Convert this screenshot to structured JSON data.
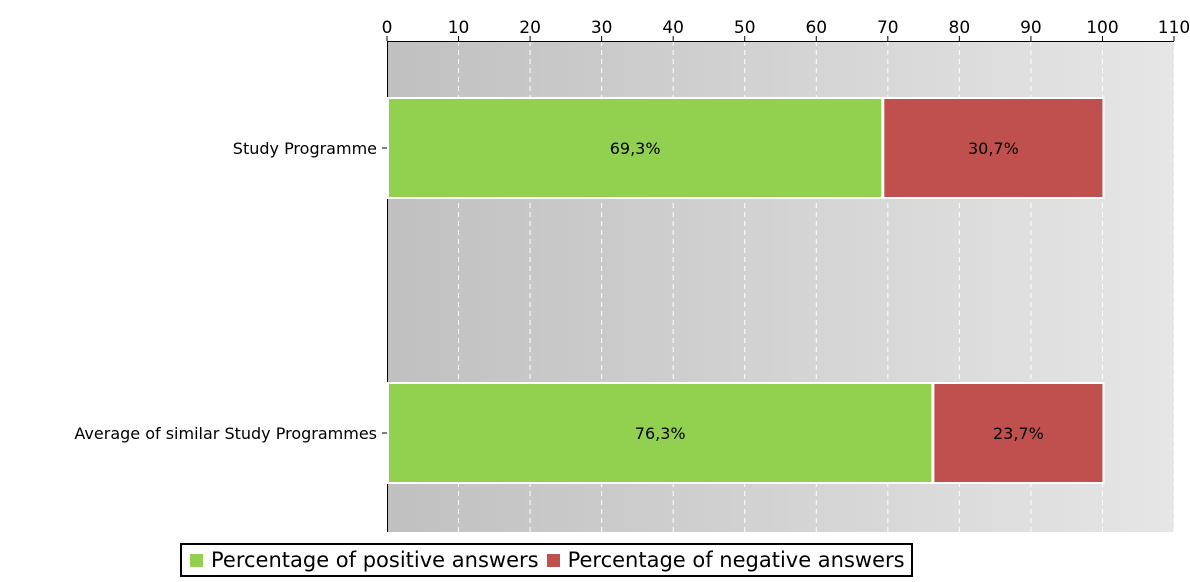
{
  "chart_data": {
    "type": "bar",
    "orientation": "horizontal",
    "stacked": true,
    "axis_position": "top",
    "xlim": [
      0,
      110
    ],
    "ticks": [
      0,
      10,
      20,
      30,
      40,
      50,
      60,
      70,
      80,
      90,
      100,
      110
    ],
    "tick_labels": [
      "0",
      "10",
      "20",
      "30",
      "40",
      "50",
      "60",
      "70",
      "80",
      "90",
      "100",
      "110"
    ],
    "grid": true,
    "legend_placement": "bottom",
    "categories": [
      "Study Programme",
      "Average of similar Study Programmes"
    ],
    "series": [
      {
        "name": "Percentage of positive answers",
        "values": [
          69.3,
          76.3
        ],
        "labels": [
          "69,3%",
          "76,3%"
        ],
        "color": "#92d050"
      },
      {
        "name": "Percentage of negative answers",
        "values": [
          30.7,
          23.7
        ],
        "labels": [
          "30,7%",
          "23,7%"
        ],
        "color": "#c0504d"
      }
    ]
  }
}
